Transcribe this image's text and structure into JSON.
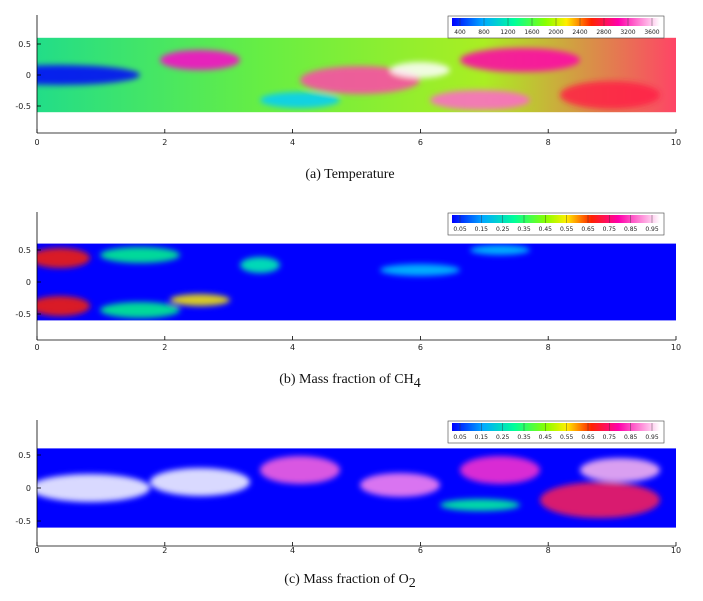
{
  "panels": [
    {
      "caption": "(a)  Temperature",
      "subscript": null,
      "xlim": [
        0,
        10
      ],
      "xticks": [
        0,
        2,
        4,
        6,
        8,
        10
      ],
      "ylim": [
        -0.6,
        0.6
      ],
      "yticks": [
        0.5,
        0,
        -0.5
      ],
      "colorbar_ticks": [
        400,
        800,
        1200,
        1600,
        2000,
        2400,
        2800,
        3200,
        3600
      ]
    },
    {
      "caption": "(b)  Mass fraction of CH",
      "subscript": "4",
      "xlim": [
        0,
        10
      ],
      "xticks": [
        0,
        2,
        4,
        6,
        8,
        10
      ],
      "ylim": [
        -0.6,
        0.6
      ],
      "yticks": [
        0.5,
        0,
        -0.5
      ],
      "colorbar_ticks": [
        0.05,
        0.15,
        0.25,
        0.35,
        0.45,
        0.55,
        0.65,
        0.75,
        0.85,
        0.95
      ]
    },
    {
      "caption": "(c)  Mass fraction of O",
      "subscript": "2",
      "xlim": [
        0,
        10
      ],
      "xticks": [
        0,
        2,
        4,
        6,
        8,
        10
      ],
      "ylim": [
        -0.6,
        0.6
      ],
      "yticks": [
        0.5,
        0,
        -0.5
      ],
      "colorbar_ticks": [
        0.05,
        0.15,
        0.25,
        0.35,
        0.45,
        0.55,
        0.65,
        0.75,
        0.85,
        0.95
      ]
    }
  ]
}
